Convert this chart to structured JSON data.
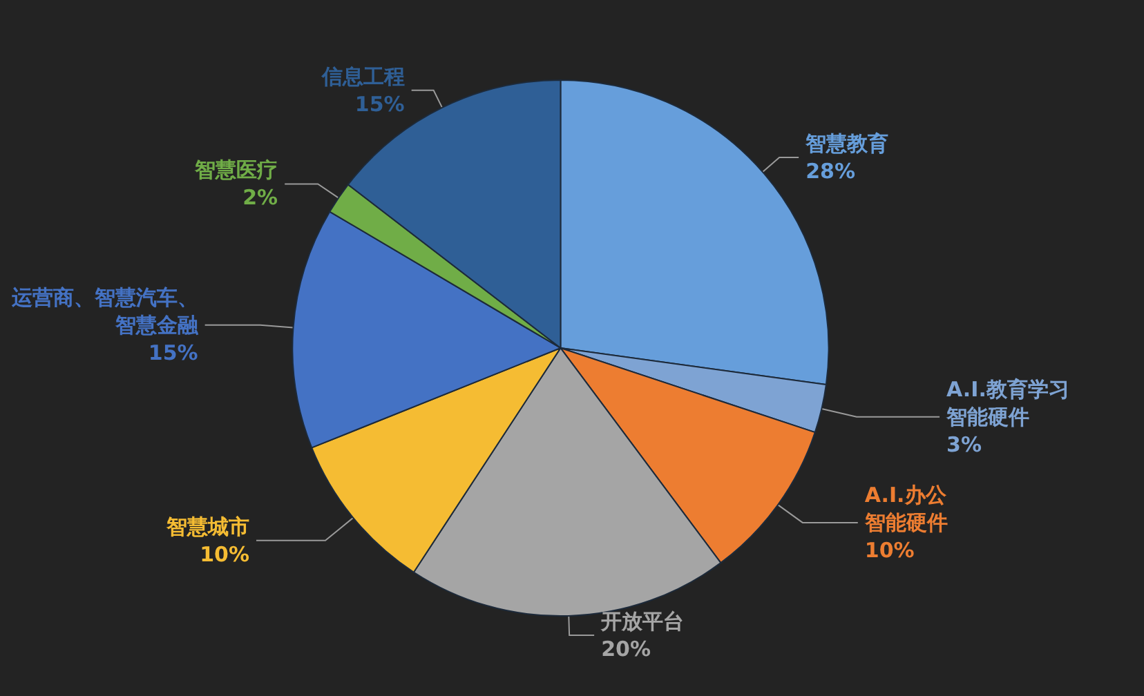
{
  "chart_data": {
    "type": "pie",
    "categories": [
      "智慧教育",
      "A.I.教育学习智能硬件",
      "A.I.办公智能硬件",
      "开放平台",
      "智慧城市",
      "运营商、智慧汽车、智慧金融",
      "智慧医疗",
      "信息工程"
    ],
    "values": [
      28,
      3,
      10,
      20,
      10,
      15,
      2,
      15
    ],
    "value_labels": [
      "28%",
      "3%",
      "10%",
      "20%",
      "10%",
      "15%",
      "2%",
      "15%"
    ],
    "colors": [
      "#669edb",
      "#7ea3d3",
      "#ed7d31",
      "#a5a5a5",
      "#f5bc33",
      "#4472c4",
      "#70ad47",
      "#2f5f96"
    ]
  }
}
